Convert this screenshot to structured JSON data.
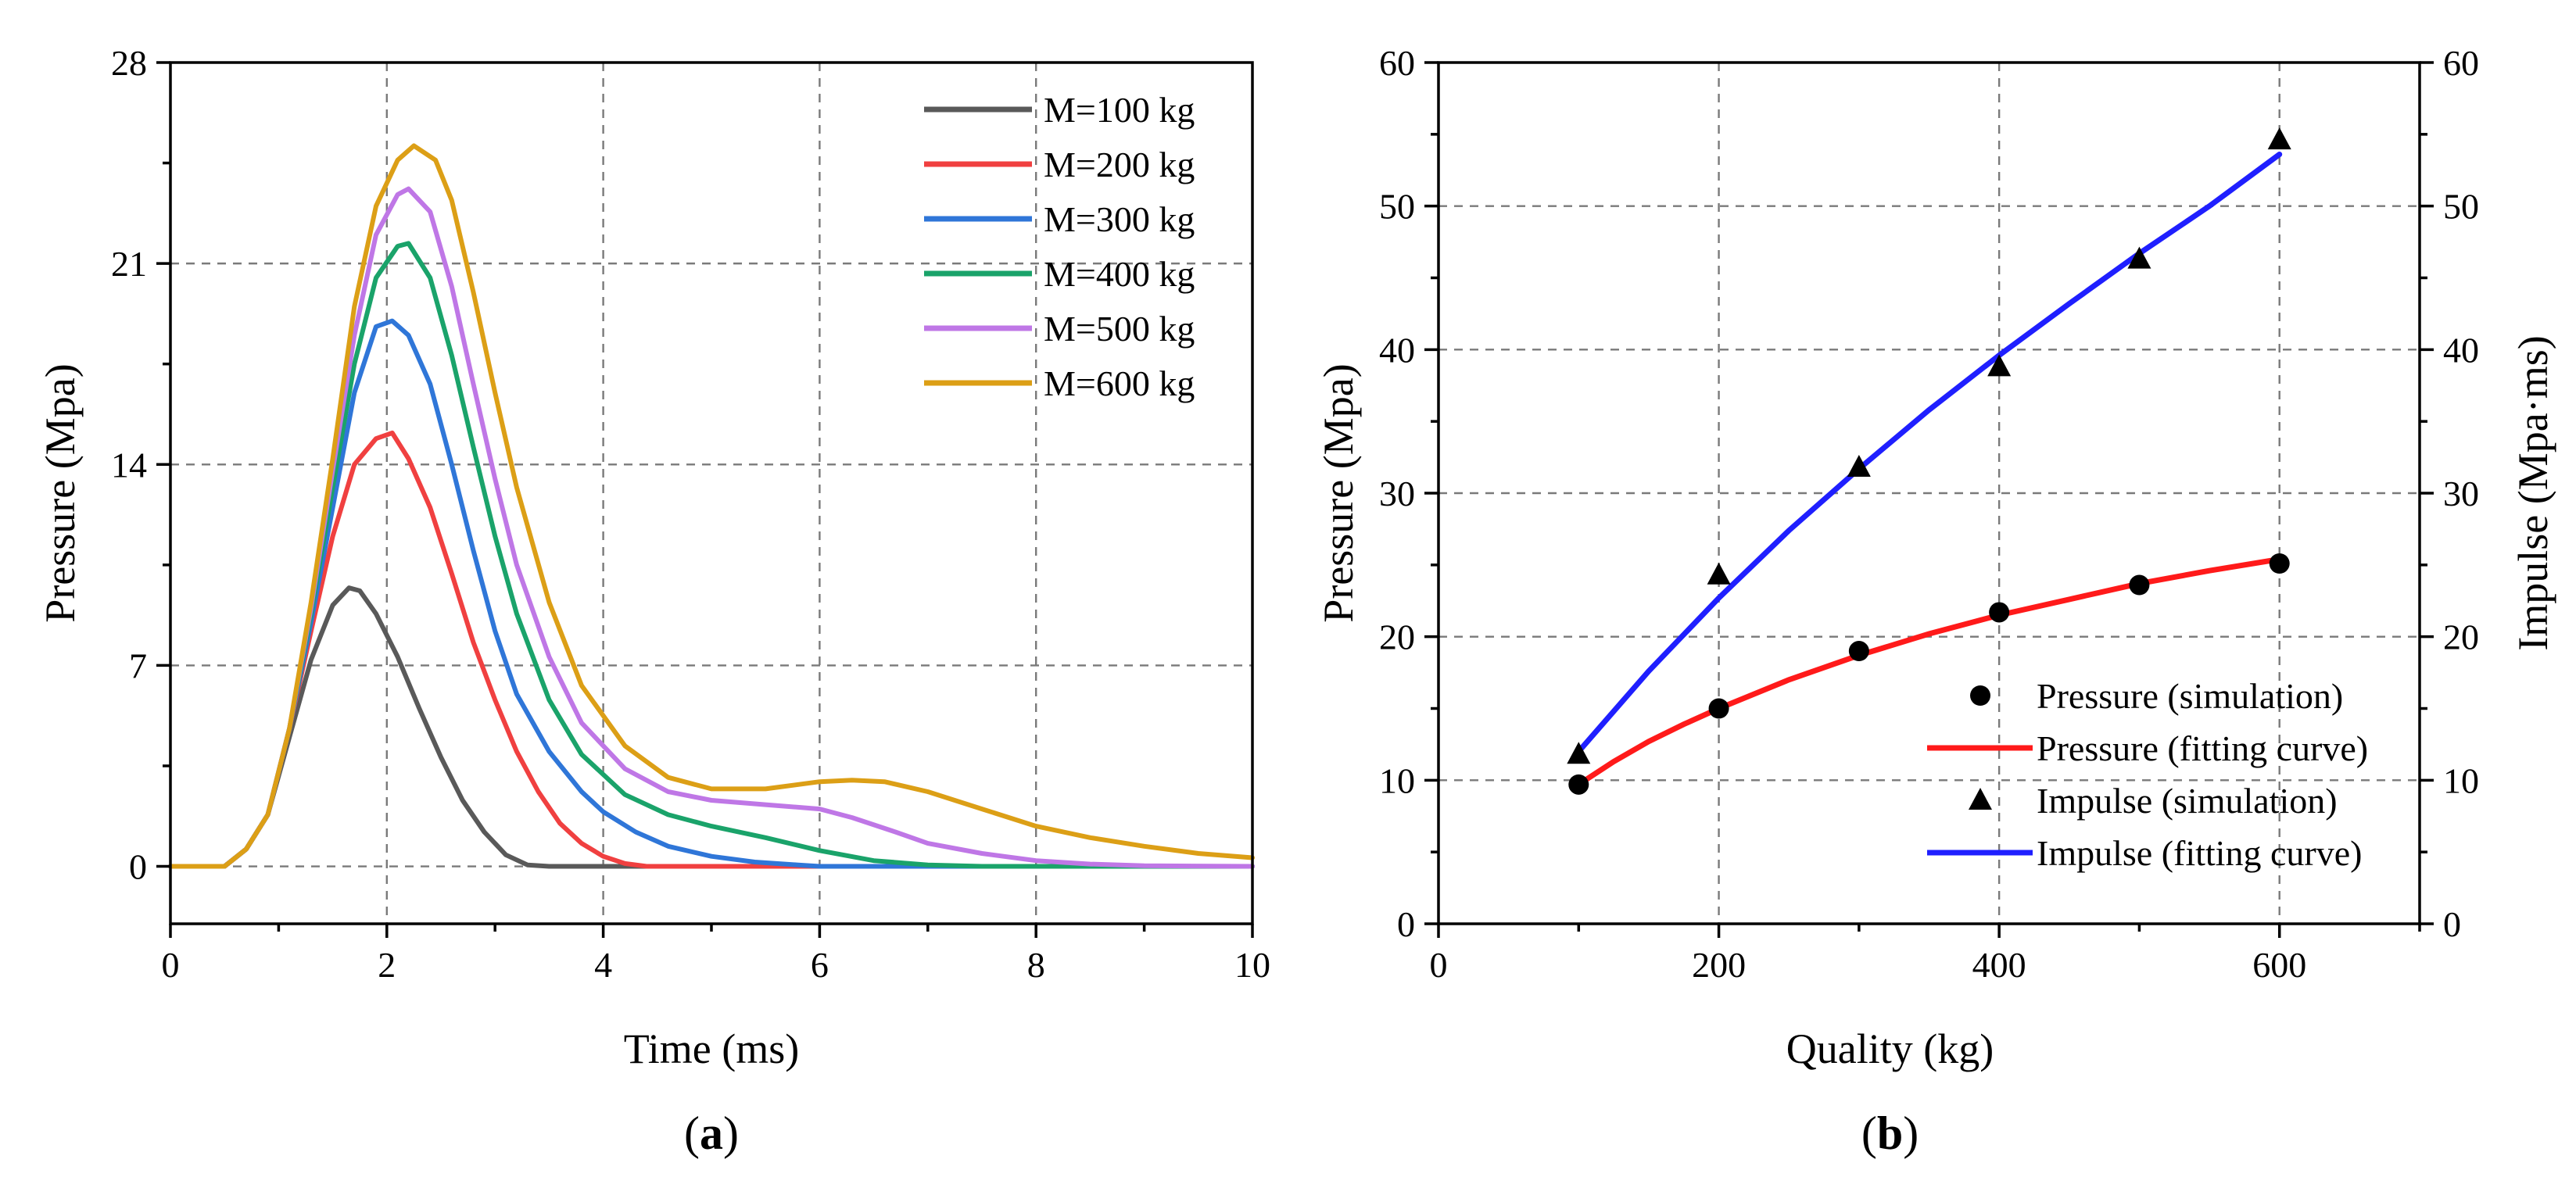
{
  "chart_data": [
    {
      "type": "line",
      "panel": "(a)",
      "panel_letter": "a",
      "xlabel": "Time (ms)",
      "ylabel": "Pressure (Mpa)",
      "xlim": [
        0,
        10
      ],
      "ylim": [
        -2,
        28
      ],
      "xticks": [
        0,
        2,
        4,
        6,
        8,
        10
      ],
      "yticks": [
        0,
        7,
        14,
        21,
        28
      ],
      "grid": true,
      "legend_position": "top-right",
      "series": [
        {
          "name": "M=100 kg",
          "color": "#595959",
          "x": [
            0,
            0.5,
            0.7,
            0.9,
            1.1,
            1.3,
            1.5,
            1.65,
            1.75,
            1.9,
            2.1,
            2.3,
            2.5,
            2.7,
            2.9,
            3.1,
            3.3,
            3.5,
            4,
            10
          ],
          "y": [
            0,
            0,
            0.6,
            1.8,
            4.5,
            7.2,
            9.1,
            9.7,
            9.6,
            8.8,
            7.3,
            5.5,
            3.8,
            2.3,
            1.2,
            0.4,
            0.05,
            0,
            0,
            0
          ]
        },
        {
          "name": "M=200 kg",
          "color": "#f04040",
          "x": [
            0,
            0.5,
            0.7,
            0.9,
            1.1,
            1.3,
            1.5,
            1.7,
            1.9,
            2.05,
            2.2,
            2.4,
            2.6,
            2.8,
            3.0,
            3.2,
            3.4,
            3.6,
            3.8,
            4.0,
            4.2,
            4.4,
            5,
            10
          ],
          "y": [
            0,
            0,
            0.6,
            1.8,
            4.8,
            8.2,
            11.5,
            14.0,
            14.9,
            15.1,
            14.2,
            12.5,
            10.2,
            7.8,
            5.8,
            4.0,
            2.6,
            1.5,
            0.8,
            0.35,
            0.1,
            0,
            0,
            0
          ]
        },
        {
          "name": "M=300 kg",
          "color": "#2f76d8",
          "x": [
            0,
            0.5,
            0.7,
            0.9,
            1.1,
            1.3,
            1.5,
            1.7,
            1.9,
            2.05,
            2.2,
            2.4,
            2.6,
            2.8,
            3.0,
            3.2,
            3.5,
            3.8,
            4.0,
            4.3,
            4.6,
            5.0,
            5.4,
            5.8,
            6.0,
            6.5,
            10
          ],
          "y": [
            0,
            0,
            0.6,
            1.8,
            4.8,
            8.5,
            12.5,
            16.5,
            18.8,
            19.0,
            18.5,
            16.8,
            14.0,
            11.0,
            8.2,
            6.0,
            4.0,
            2.6,
            1.9,
            1.2,
            0.7,
            0.35,
            0.15,
            0.05,
            0,
            0,
            0
          ]
        },
        {
          "name": "M=400 kg",
          "color": "#1aa36a",
          "x": [
            0,
            0.5,
            0.7,
            0.9,
            1.1,
            1.3,
            1.5,
            1.7,
            1.9,
            2.1,
            2.2,
            2.4,
            2.6,
            2.8,
            3.0,
            3.2,
            3.5,
            3.8,
            4.2,
            4.6,
            5.0,
            5.5,
            6.0,
            6.5,
            7.0,
            7.5,
            10
          ],
          "y": [
            0,
            0,
            0.6,
            1.8,
            4.8,
            8.8,
            13.2,
            17.5,
            20.5,
            21.6,
            21.7,
            20.5,
            17.8,
            14.6,
            11.5,
            8.8,
            5.8,
            3.9,
            2.5,
            1.8,
            1.4,
            1.0,
            0.55,
            0.2,
            0.05,
            0,
            0
          ]
        },
        {
          "name": "M=500 kg",
          "color": "#bf77e6",
          "x": [
            0,
            0.5,
            0.7,
            0.9,
            1.1,
            1.3,
            1.5,
            1.7,
            1.9,
            2.1,
            2.2,
            2.4,
            2.6,
            2.8,
            3.0,
            3.2,
            3.5,
            3.8,
            4.2,
            4.6,
            5.0,
            5.5,
            6.0,
            6.3,
            6.7,
            7.0,
            7.5,
            8.0,
            8.5,
            9.0,
            10
          ],
          "y": [
            0,
            0,
            0.6,
            1.8,
            4.8,
            9.0,
            13.8,
            18.5,
            22.0,
            23.4,
            23.6,
            22.8,
            20.2,
            16.8,
            13.5,
            10.5,
            7.3,
            5.0,
            3.4,
            2.6,
            2.3,
            2.15,
            2.0,
            1.7,
            1.2,
            0.8,
            0.45,
            0.2,
            0.08,
            0.02,
            0
          ]
        },
        {
          "name": "M=600 kg",
          "color": "#dc9f16",
          "x": [
            0,
            0.5,
            0.7,
            0.9,
            1.1,
            1.3,
            1.5,
            1.7,
            1.9,
            2.1,
            2.25,
            2.45,
            2.6,
            2.8,
            3.0,
            3.2,
            3.5,
            3.8,
            4.2,
            4.6,
            5.0,
            5.5,
            6.0,
            6.3,
            6.6,
            7.0,
            7.5,
            8.0,
            8.5,
            9.0,
            9.5,
            10
          ],
          "y": [
            0,
            0,
            0.6,
            1.8,
            4.8,
            9.2,
            14.2,
            19.5,
            23.0,
            24.6,
            25.1,
            24.6,
            23.2,
            20.0,
            16.5,
            13.2,
            9.2,
            6.3,
            4.2,
            3.1,
            2.7,
            2.7,
            2.95,
            3.0,
            2.95,
            2.6,
            2.0,
            1.4,
            1.0,
            0.7,
            0.45,
            0.3
          ]
        }
      ]
    },
    {
      "type": "scatter+line",
      "panel": "(b)",
      "panel_letter": "b",
      "xlabel": "Quality (kg)",
      "ylabel": "Pressure (Mpa)",
      "ylabel_right": "Impulse (Mpa·ms)",
      "xlim": [
        0,
        700
      ],
      "ylim": [
        0,
        60
      ],
      "ylim_right": [
        0,
        60
      ],
      "xticks": [
        0,
        200,
        400,
        600
      ],
      "yticks": [
        0,
        10,
        20,
        30,
        40,
        50,
        60
      ],
      "yticks_right": [
        0,
        10,
        20,
        30,
        40,
        50,
        60
      ],
      "grid": true,
      "legend_position": "bottom-right",
      "series": [
        {
          "name": "Pressure (simulation)",
          "kind": "marker-circle",
          "color": "#000000",
          "x": [
            100,
            200,
            300,
            400,
            500,
            600
          ],
          "y": [
            9.7,
            15.0,
            19.0,
            21.7,
            23.6,
            25.1
          ]
        },
        {
          "name": "Pressure (fitting curve)",
          "kind": "line",
          "color": "#ff1a1a",
          "x": [
            100,
            125,
            150,
            175,
            200,
            250,
            300,
            350,
            400,
            450,
            500,
            550,
            600
          ],
          "y": [
            9.7,
            11.3,
            12.7,
            13.9,
            15.0,
            17.0,
            18.7,
            20.2,
            21.5,
            22.6,
            23.7,
            24.6,
            25.4
          ]
        },
        {
          "name": "Impulse (simulation)",
          "kind": "marker-triangle",
          "color": "#000000",
          "x": [
            100,
            200,
            300,
            400,
            500,
            600
          ],
          "y": [
            11.8,
            24.3,
            31.8,
            38.8,
            46.3,
            54.6
          ]
        },
        {
          "name": "Impulse (fitting curve)",
          "kind": "line",
          "color": "#1f1fff",
          "x": [
            100,
            150,
            200,
            250,
            300,
            350,
            400,
            450,
            500,
            550,
            600
          ],
          "y": [
            12.0,
            17.6,
            22.7,
            27.4,
            31.7,
            35.8,
            39.6,
            43.2,
            46.7,
            50.0,
            53.6
          ]
        }
      ]
    }
  ]
}
